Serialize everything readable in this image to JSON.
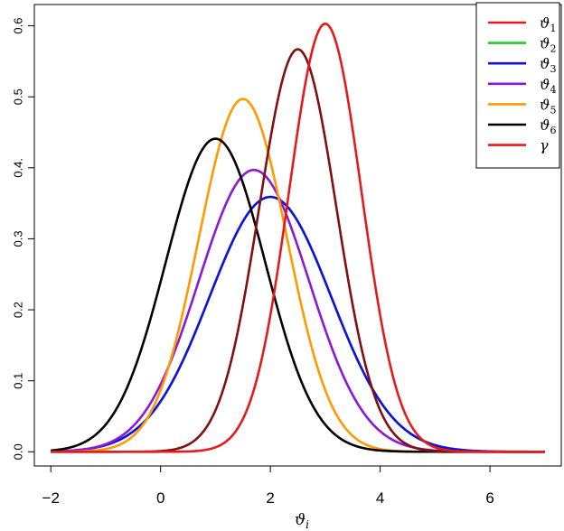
{
  "chart_data": {
    "type": "line",
    "title": "",
    "xlabel": "ϑ",
    "xlabel_sub": "i",
    "ylabel": "",
    "xlim": [
      -2.3,
      7.3
    ],
    "ylim": [
      -0.02,
      0.63
    ],
    "x_ticks": [
      -2,
      0,
      2,
      4,
      6
    ],
    "x_tick_labels": [
      "−2",
      "0",
      "2",
      "4",
      "6"
    ],
    "y_ticks": [
      0.0,
      0.1,
      0.2,
      0.3,
      0.4,
      0.5,
      0.6
    ],
    "y_tick_labels": [
      "0.0",
      "0.1",
      "0.2",
      "0.3",
      "0.4.",
      "0.5",
      "0.6"
    ],
    "grid": false,
    "legend_position": "top-right",
    "x_range": [
      -2,
      7
    ],
    "series": [
      {
        "name": "ϑ",
        "sub": "1",
        "color": "#7f1111",
        "legend_color": "#e41a1c",
        "mu": 2.5,
        "peak": 0.567
      },
      {
        "name": "ϑ",
        "sub": "2",
        "color": "#22cc22",
        "legend_color": "#22cc22",
        "mu": 2.0,
        "peak": 0.359
      },
      {
        "name": "ϑ",
        "sub": "3",
        "color": "#1010e0",
        "legend_color": "#1010e0",
        "mu": 2.0,
        "peak": 0.359
      },
      {
        "name": "ϑ",
        "sub": "4",
        "color": "#8b18d8",
        "legend_color": "#8b18d8",
        "mu": 1.7,
        "peak": 0.397
      },
      {
        "name": "ϑ",
        "sub": "5",
        "color": "#ff9900",
        "legend_color": "#ff9900",
        "mu": 1.5,
        "peak": 0.497
      },
      {
        "name": "ϑ",
        "sub": "6",
        "color": "#000000",
        "legend_color": "#000000",
        "mu": 1.0,
        "peak": 0.441
      },
      {
        "name": "γ",
        "sub": "",
        "color": "#e41a1c",
        "legend_color": "#e41a1c",
        "mu": 3.0,
        "peak": 0.603
      }
    ]
  }
}
